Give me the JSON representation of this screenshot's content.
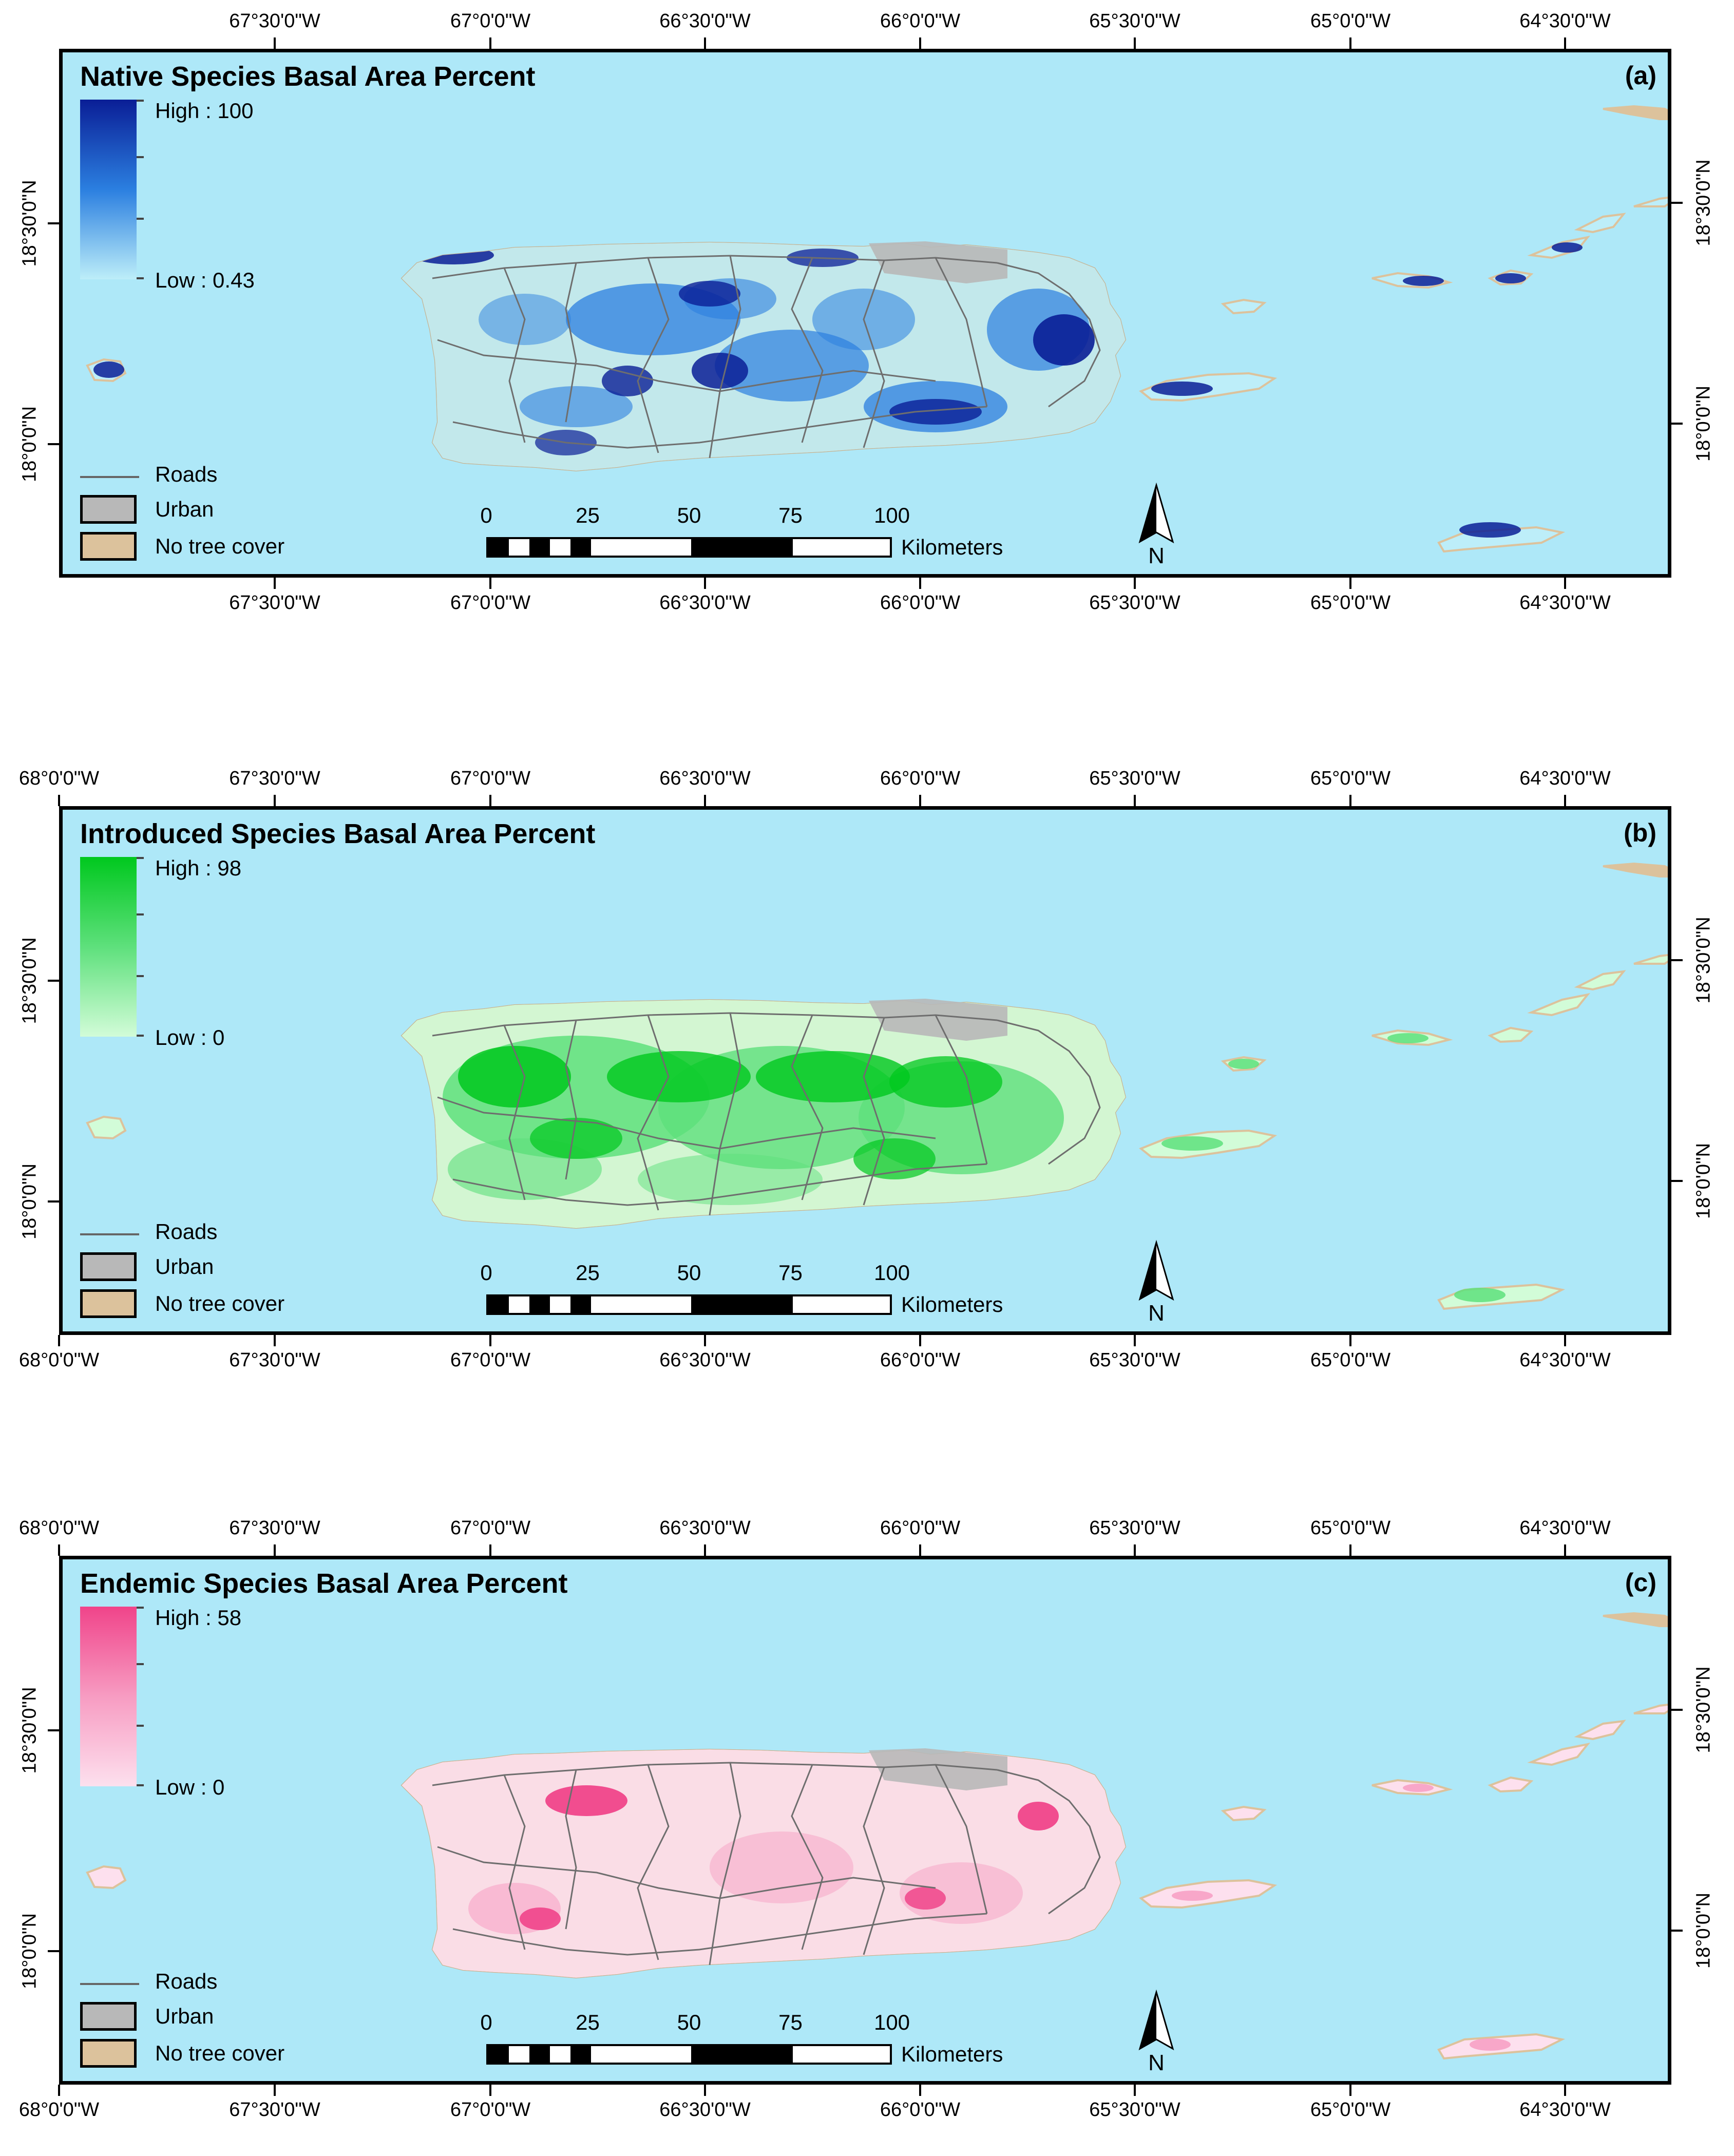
{
  "figure": {
    "longitudes": [
      "68°0'0\"W",
      "67°30'0\"W",
      "67°0'0\"W",
      "66°30'0\"W",
      "66°0'0\"W",
      "65°30'0\"W",
      "65°0'0\"W",
      "64°30'0\"W"
    ],
    "latitudes": [
      "18°30'0\"N",
      "18°0'0\"N"
    ],
    "colors": {
      "sea": "#aee8f8",
      "urban": "#b8b8b8",
      "no_tree": "#dcc29c",
      "roads": "#6e6e6e"
    }
  },
  "panels": [
    {
      "id": "a",
      "title": "Native Species Basal Area Percent",
      "label": "(a)",
      "legend": {
        "high": "High : 100",
        "low": "Low : 0.43",
        "ramp_high": "#0a1e96",
        "ramp_mid": "#2b7fe0",
        "ramp_low": "#bdeef9"
      },
      "layers": {
        "roads": "Roads",
        "urban": "Urban",
        "no_tree": "No tree cover"
      },
      "scale": {
        "ticks": [
          "0",
          "25",
          "50",
          "75",
          "100"
        ],
        "unit": "Kilometers"
      },
      "north": "N"
    },
    {
      "id": "b",
      "title": "Introduced Species Basal Area Percent",
      "label": "(b)",
      "legend": {
        "high": "High : 98",
        "low": "Low : 0",
        "ramp_high": "#00c81e",
        "ramp_mid": "#5ee07c",
        "ramp_low": "#d2fcd8"
      },
      "layers": {
        "roads": "Roads",
        "urban": "Urban",
        "no_tree": "No tree cover"
      },
      "scale": {
        "ticks": [
          "0",
          "25",
          "50",
          "75",
          "100"
        ],
        "unit": "Kilometers"
      },
      "north": "N"
    },
    {
      "id": "c",
      "title": "Endemic Species Basal Area Percent",
      "label": "(c)",
      "legend": {
        "high": "High : 58",
        "low": "Low : 0",
        "ramp_high": "#f0448a",
        "ramp_mid": "#f79cc2",
        "ramp_low": "#fde0ee"
      },
      "layers": {
        "roads": "Roads",
        "urban": "Urban",
        "no_tree": "No tree cover"
      },
      "scale": {
        "ticks": [
          "0",
          "25",
          "50",
          "75",
          "100"
        ],
        "unit": "Kilometers"
      },
      "north": "N"
    }
  ]
}
